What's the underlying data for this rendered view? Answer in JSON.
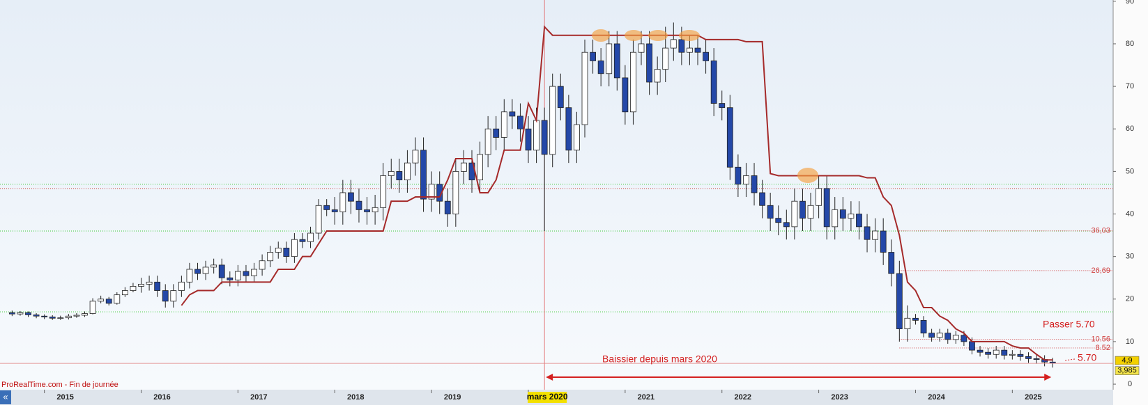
{
  "chart_data": {
    "type": "candlestick",
    "categories": [
      null,
      null,
      null,
      null,
      null,
      null,
      null,
      null,
      null,
      null,
      null,
      null,
      null,
      null,
      null,
      null,
      null,
      null,
      null,
      null,
      null,
      null,
      null,
      null,
      null,
      null,
      null,
      null,
      null,
      null,
      null,
      null,
      null,
      null,
      null,
      null,
      null,
      null,
      null,
      null,
      null,
      null,
      null,
      null,
      null,
      null,
      null,
      null,
      null,
      null,
      null,
      null,
      null,
      null,
      null,
      null,
      null,
      null,
      null,
      null,
      null,
      null,
      null,
      null,
      null,
      null,
      null,
      null,
      null,
      null,
      null,
      null,
      null,
      null,
      null,
      null,
      null,
      null,
      null,
      null,
      null,
      null,
      null,
      null,
      null,
      null,
      null,
      null,
      null,
      null,
      null,
      null,
      null,
      null,
      null,
      null,
      null,
      null,
      null,
      null,
      null,
      null,
      null,
      null,
      null,
      null,
      null,
      null,
      null,
      null,
      null,
      null,
      null,
      null,
      null,
      null,
      null,
      null,
      null,
      null,
      null,
      null,
      null,
      null,
      null,
      null,
      null,
      null,
      null,
      null
    ],
    "open": [
      16.8,
      16.5,
      16.8,
      16.3,
      16,
      15.8,
      15.5,
      15.6,
      16,
      16.2,
      16.6,
      19.5,
      20,
      19,
      21,
      22,
      23,
      23.5,
      24,
      22,
      19.5,
      22,
      24,
      27,
      26,
      27.5,
      28,
      25,
      24.5,
      26.5,
      25.5,
      27,
      29,
      31,
      32,
      30,
      34,
      33.5,
      35.5,
      42,
      41,
      40.5,
      45,
      43,
      41,
      40.5,
      41.5,
      49,
      50,
      48,
      52,
      55,
      43.5,
      47,
      43,
      40,
      50,
      52,
      48,
      54,
      60,
      58,
      64,
      63,
      60,
      55,
      62,
      54,
      70,
      65,
      55,
      61,
      78,
      76,
      73,
      80,
      72,
      64,
      78,
      80,
      71,
      74,
      79,
      81,
      78,
      79,
      78,
      76,
      66,
      65,
      51,
      47,
      49,
      45,
      42,
      39,
      38,
      37,
      43,
      39,
      42,
      46,
      37,
      41,
      39,
      40,
      37,
      34,
      36,
      31,
      26,
      13,
      15.5,
      15,
      12,
      11,
      12,
      10.5,
      11.5,
      10,
      8,
      7.5,
      7,
      8,
      6.8,
      7,
      6.5,
      6,
      5.8,
      5.2
    ],
    "high": [
      17.3,
      17.2,
      17.1,
      16.7,
      16.4,
      16.2,
      16.1,
      16.5,
      16.7,
      17.1,
      20.2,
      20.8,
      20.5,
      21.6,
      22.8,
      23.8,
      25,
      25.5,
      25.5,
      23.5,
      23.5,
      25.5,
      28.5,
      28.5,
      29,
      29.5,
      29.5,
      26.5,
      28,
      28,
      28.5,
      30.5,
      32.5,
      33.5,
      33.5,
      35.5,
      35.5,
      37,
      43.5,
      43.5,
      44,
      48,
      48,
      46,
      44,
      44.5,
      52,
      53,
      53,
      55,
      58,
      58,
      50,
      50,
      46,
      53,
      55,
      55,
      57,
      63,
      63,
      67,
      67,
      66,
      63,
      65,
      65,
      73,
      73,
      68,
      64,
      81,
      81,
      79,
      83,
      83,
      75,
      81,
      83,
      83,
      77,
      84,
      85,
      84,
      82,
      82,
      81,
      79,
      69,
      68,
      54,
      52,
      52,
      48,
      45,
      42,
      41,
      46,
      46,
      45,
      49,
      49,
      44,
      44,
      43,
      43,
      40,
      39,
      39,
      34,
      29,
      18.5,
      16.5,
      16,
      13,
      13,
      13,
      12.5,
      12.5,
      11,
      9,
      8.5,
      9,
      9,
      8,
      8,
      7.5,
      7,
      6.8,
      6.2
    ],
    "low": [
      16,
      16.1,
      15.8,
      15.5,
      15.3,
      15.1,
      15.1,
      15.2,
      15.6,
      15.8,
      16.4,
      19,
      18.5,
      18.7,
      20.5,
      21.6,
      21.5,
      22,
      20.5,
      18,
      18,
      20.5,
      22.5,
      24.5,
      24.5,
      26,
      23.5,
      23,
      23,
      24,
      24,
      25.5,
      27.5,
      29.5,
      28.5,
      28.5,
      32,
      32,
      34,
      39.5,
      37.5,
      37.5,
      40,
      38,
      37.5,
      37.5,
      38.5,
      46,
      45,
      45,
      49,
      40.5,
      40.5,
      40,
      37,
      37,
      47,
      45,
      45,
      51,
      55,
      55,
      60,
      57,
      52,
      52,
      36,
      51,
      62,
      52,
      52,
      58,
      73,
      70,
      70,
      69,
      61,
      61,
      75,
      68,
      68,
      71,
      76,
      75,
      75,
      75,
      73,
      63,
      62,
      48,
      44,
      44,
      42,
      39,
      36,
      35,
      34,
      34,
      36,
      36,
      39,
      34,
      34,
      36,
      36,
      34,
      31,
      31,
      28,
      23,
      10,
      10,
      14,
      11,
      10,
      10,
      9.5,
      9.5,
      9,
      7,
      6.5,
      6,
      6,
      5.8,
      5.8,
      5.5,
      5,
      4.8,
      4.2,
      3.9
    ],
    "close": [
      16.5,
      16.8,
      16.3,
      16,
      15.8,
      15.5,
      15.6,
      16,
      16.2,
      16.6,
      19.5,
      20,
      19,
      21,
      22,
      23,
      23.5,
      24,
      22,
      19.5,
      22,
      24,
      27,
      26,
      27.5,
      28,
      25,
      24.5,
      26.5,
      25.5,
      27,
      29,
      31,
      32,
      30,
      34,
      33.5,
      35.5,
      42,
      41,
      40.5,
      45,
      43,
      41,
      40.5,
      41.5,
      49,
      50,
      48,
      52,
      55,
      43.5,
      47,
      43,
      40,
      50,
      52,
      48,
      54,
      60,
      58,
      64,
      63,
      60,
      55,
      62,
      54,
      70,
      65,
      55,
      61,
      78,
      76,
      73,
      80,
      72,
      64,
      78,
      80,
      71,
      74,
      79,
      81,
      78,
      79,
      78,
      76,
      66,
      65,
      51,
      47,
      49,
      45,
      42,
      39,
      38,
      37,
      43,
      39,
      42,
      46,
      37,
      41,
      39,
      40,
      37,
      34,
      36,
      31,
      26,
      13,
      15.5,
      15,
      12,
      11,
      12,
      10.5,
      11.5,
      10,
      8,
      7.5,
      7,
      8,
      6.8,
      7,
      6.5,
      6,
      5.8,
      5.2,
      4.9
    ],
    "stop": {
      "color": "#a52a2a",
      "values": [
        null,
        null,
        null,
        null,
        null,
        null,
        null,
        null,
        null,
        null,
        null,
        null,
        null,
        null,
        null,
        null,
        null,
        null,
        null,
        null,
        null,
        18.5,
        21,
        22,
        22,
        22,
        24,
        24,
        24,
        24,
        24,
        24,
        24,
        27,
        27,
        27,
        30,
        30,
        33,
        36,
        36,
        36,
        36,
        36,
        36,
        36,
        36,
        43,
        43,
        43,
        44,
        44,
        44,
        44,
        48,
        53,
        53,
        53,
        45,
        45,
        48,
        55,
        55,
        55,
        66,
        62,
        84,
        82,
        82,
        82,
        82,
        82,
        82,
        82,
        82,
        82,
        82,
        82,
        82,
        82,
        82,
        82,
        82,
        82,
        82,
        82,
        81,
        81,
        81,
        81,
        81,
        80.5,
        80.5,
        80.5,
        49.5,
        49,
        49,
        49,
        49,
        49,
        49,
        49,
        49,
        49,
        49,
        49,
        48.5,
        48.5,
        44,
        42,
        35,
        24,
        22,
        18,
        18,
        16,
        15,
        13,
        12,
        10,
        10,
        10,
        10,
        10,
        9,
        8.5,
        8.5,
        7,
        5.7,
        5.7
      ]
    },
    "bull_color": "#ffffff",
    "bear_color": "#2448a8",
    "ylim": [
      -1.3,
      90.3
    ],
    "yticks": [
      0,
      10,
      20,
      30,
      40,
      50,
      60,
      70,
      80,
      90
    ],
    "xlim": [
      -1.5,
      136.5
    ],
    "xticks": [
      {
        "value": 4,
        "label": "2015"
      },
      {
        "value": 16,
        "label": "2016"
      },
      {
        "value": 28,
        "label": "2017"
      },
      {
        "value": 40,
        "label": "2018"
      },
      {
        "value": 52,
        "label": "2019"
      },
      {
        "value": 64,
        "label": "2020"
      },
      {
        "value": 76,
        "label": "2021"
      },
      {
        "value": 88,
        "label": "2022"
      },
      {
        "value": 100,
        "label": "2023"
      },
      {
        "value": 112,
        "label": "2024"
      },
      {
        "value": 124,
        "label": "2025"
      }
    ],
    "levels": [
      {
        "value": 17,
        "color": "#33cc33"
      },
      {
        "value": 36,
        "color": "#33cc33"
      },
      {
        "value": 47,
        "color": "#33cc33"
      },
      {
        "value": 46,
        "color": "#d04040"
      },
      {
        "value": 36.03,
        "label": "36,03",
        "color": "#d04040"
      },
      {
        "value": 26.69,
        "label": "26,69",
        "color": "#d04040"
      },
      {
        "value": 10.56,
        "label": "10.56",
        "color": "#d04040"
      },
      {
        "value": 8.52,
        "label": "8.52",
        "color": "#d04040"
      }
    ],
    "price_badges": [
      {
        "value": 4.9,
        "label": "4,9"
      },
      {
        "value": 3.985,
        "label": "3,985"
      }
    ],
    "event": {
      "index": 66,
      "label": "mars 2020"
    },
    "annotations": {
      "trend": "Baissier depuis mars 2020",
      "target": "Passer  5.70",
      "stop_label": "5.70",
      "source": "ProRealTime.com - Fin de journée"
    }
  }
}
